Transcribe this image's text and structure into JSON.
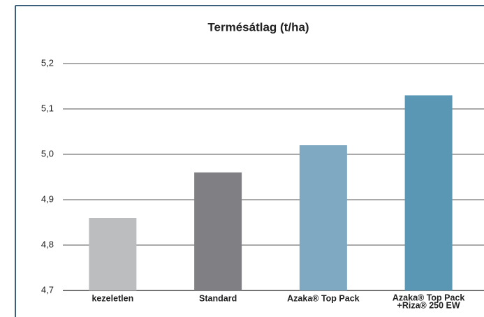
{
  "chart_data": {
    "type": "bar",
    "title": "Termésátlag (t/ha)",
    "categories": [
      "kezeletlen",
      "Standard",
      "Azaka® Top Pack",
      [
        "Azaka® Top Pack",
        "+Riza® 250 EW"
      ]
    ],
    "values": [
      4.86,
      4.96,
      5.02,
      5.13
    ],
    "colors": [
      "#bcbdbf",
      "#808084",
      "#7fa8c2",
      "#5a97b5"
    ],
    "ylim": [
      4.7,
      5.2
    ],
    "yticks": [
      {
        "value": 4.7,
        "label": "4,7"
      },
      {
        "value": 4.8,
        "label": "4,8"
      },
      {
        "value": 4.9,
        "label": "4,9"
      },
      {
        "value": 5.0,
        "label": "5,0"
      },
      {
        "value": 5.1,
        "label": "5,1"
      },
      {
        "value": 5.2,
        "label": "5,2"
      }
    ],
    "grid": true
  }
}
